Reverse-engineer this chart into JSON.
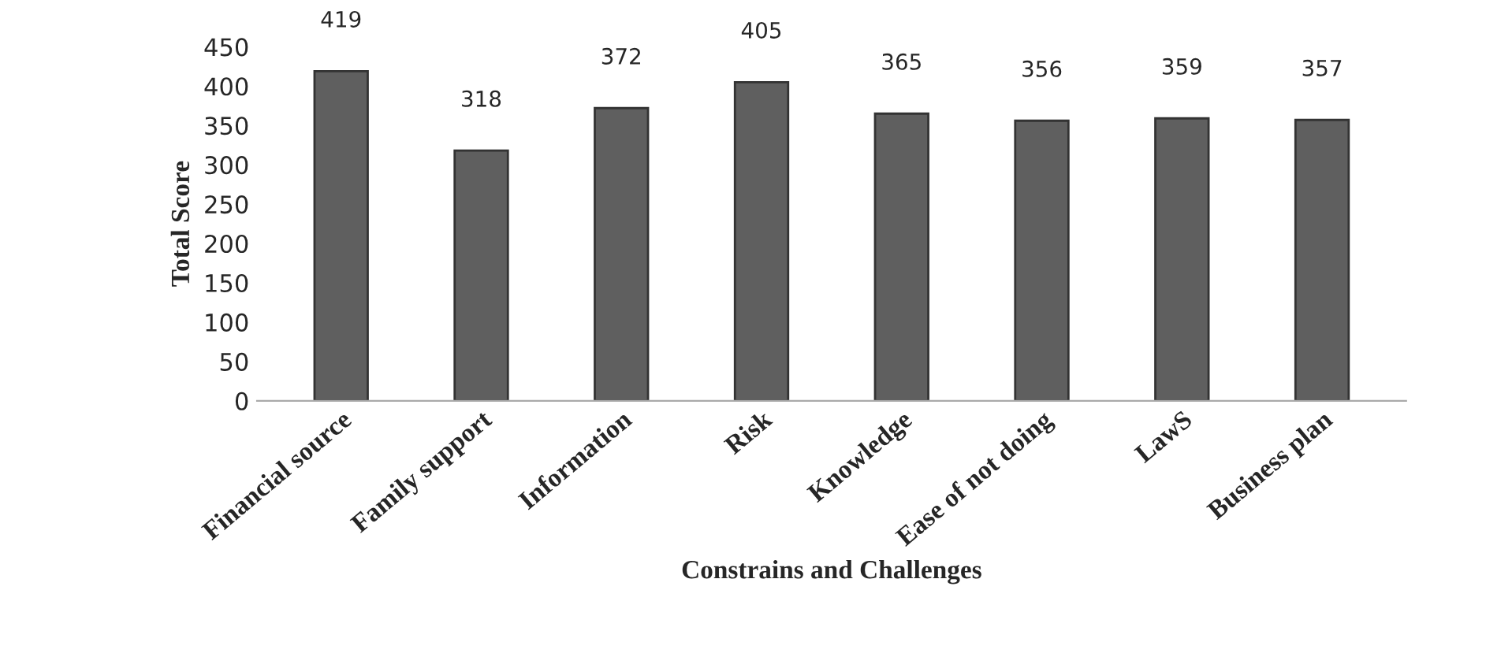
{
  "chart_data": {
    "type": "bar",
    "categories": [
      "Financial source",
      "Family support",
      "Information",
      "Risk",
      "Knowledge",
      "Ease of not doing",
      "LawS",
      "Business plan"
    ],
    "values": [
      419,
      318,
      372,
      405,
      365,
      356,
      359,
      357
    ],
    "color": "#5f5f5f",
    "xlabel": "Constrains and Challenges",
    "ylabel": "Total Score",
    "ylim": [
      0,
      450
    ],
    "yticks": [
      0,
      50,
      100,
      150,
      200,
      250,
      300,
      350,
      400,
      450
    ],
    "data_labels": true,
    "grid": false,
    "legend": false
  }
}
